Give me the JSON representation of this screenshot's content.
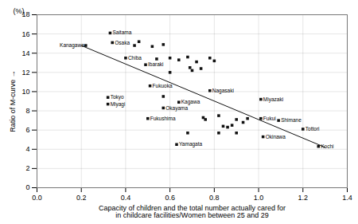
{
  "chart_data": {
    "type": "scatter",
    "xlabel": "Capacity of children and the total number actually cared for\nin childcare facilities/Women between 25 and 29",
    "ylabel": "Ratio of M-curve",
    "annotations": [
      "(%)"
    ],
    "xlim": [
      0,
      1.4
    ],
    "ylim": [
      0,
      18
    ],
    "xticks": [
      {
        "value": 0,
        "label": "0.0"
      },
      0.2,
      0.4,
      0.6,
      0.8,
      {
        "value": 1.0,
        "label": "1.0"
      },
      1.2,
      1.4
    ],
    "yticks": [
      0,
      2,
      4,
      6,
      8,
      10,
      12,
      14,
      16,
      18
    ],
    "grid": true,
    "marker": "square",
    "color": "#111111",
    "x": [
      0.44,
      0.46,
      0.52,
      0.57,
      0.54,
      0.6,
      0.64,
      0.68,
      0.69,
      0.7,
      0.72,
      0.74,
      0.78,
      0.8,
      0.6,
      0.57,
      0.75,
      0.76,
      0.82,
      0.84,
      0.86,
      0.88,
      0.9,
      0.93,
      0.95,
      0.82,
      0.68,
      0.9,
      0.22,
      0.33,
      0.34,
      0.4,
      0.49,
      0.51,
      0.32,
      0.32,
      0.57,
      0.5,
      0.64,
      0.78,
      0.63,
      1.01,
      1.01,
      1.09,
      1.2,
      1.02,
      1.27
    ],
    "values": [
      14.8,
      15.2,
      14.7,
      14.9,
      13.4,
      13.5,
      13.3,
      13.6,
      12.5,
      12.2,
      13.1,
      12.4,
      13.5,
      13.2,
      12.0,
      9.5,
      7.3,
      7.1,
      7.5,
      6.4,
      6.3,
      6.5,
      7.1,
      6.8,
      7.2,
      5.7,
      5.7,
      5.7,
      14.8,
      16.1,
      15.1,
      13.5,
      12.8,
      10.6,
      9.4,
      8.7,
      8.3,
      7.2,
      8.9,
      10.1,
      4.5,
      9.2,
      7.2,
      7.0,
      6.1,
      5.3,
      4.3
    ],
    "point_labels": [
      null,
      null,
      null,
      null,
      null,
      null,
      null,
      null,
      null,
      null,
      null,
      null,
      null,
      null,
      null,
      null,
      null,
      null,
      null,
      null,
      null,
      null,
      null,
      null,
      null,
      null,
      null,
      null,
      "Kanagawa",
      "Saitama",
      "Osaka",
      "Chiba",
      "Ibaraki",
      "Fukuoka",
      "Tokyo",
      "Miyagi",
      "Okayama",
      "Fukushima",
      "Kagawa",
      "Nagasaki",
      "Yamagata",
      "Miyazaki",
      "Fukui",
      "Shimane",
      "Tottori",
      "Okinawa",
      "Kochi"
    ],
    "trendline": {
      "type": "line",
      "x": [
        0.2,
        1.3
      ],
      "values": [
        14.8,
        4.2
      ],
      "color": "#111111"
    }
  }
}
